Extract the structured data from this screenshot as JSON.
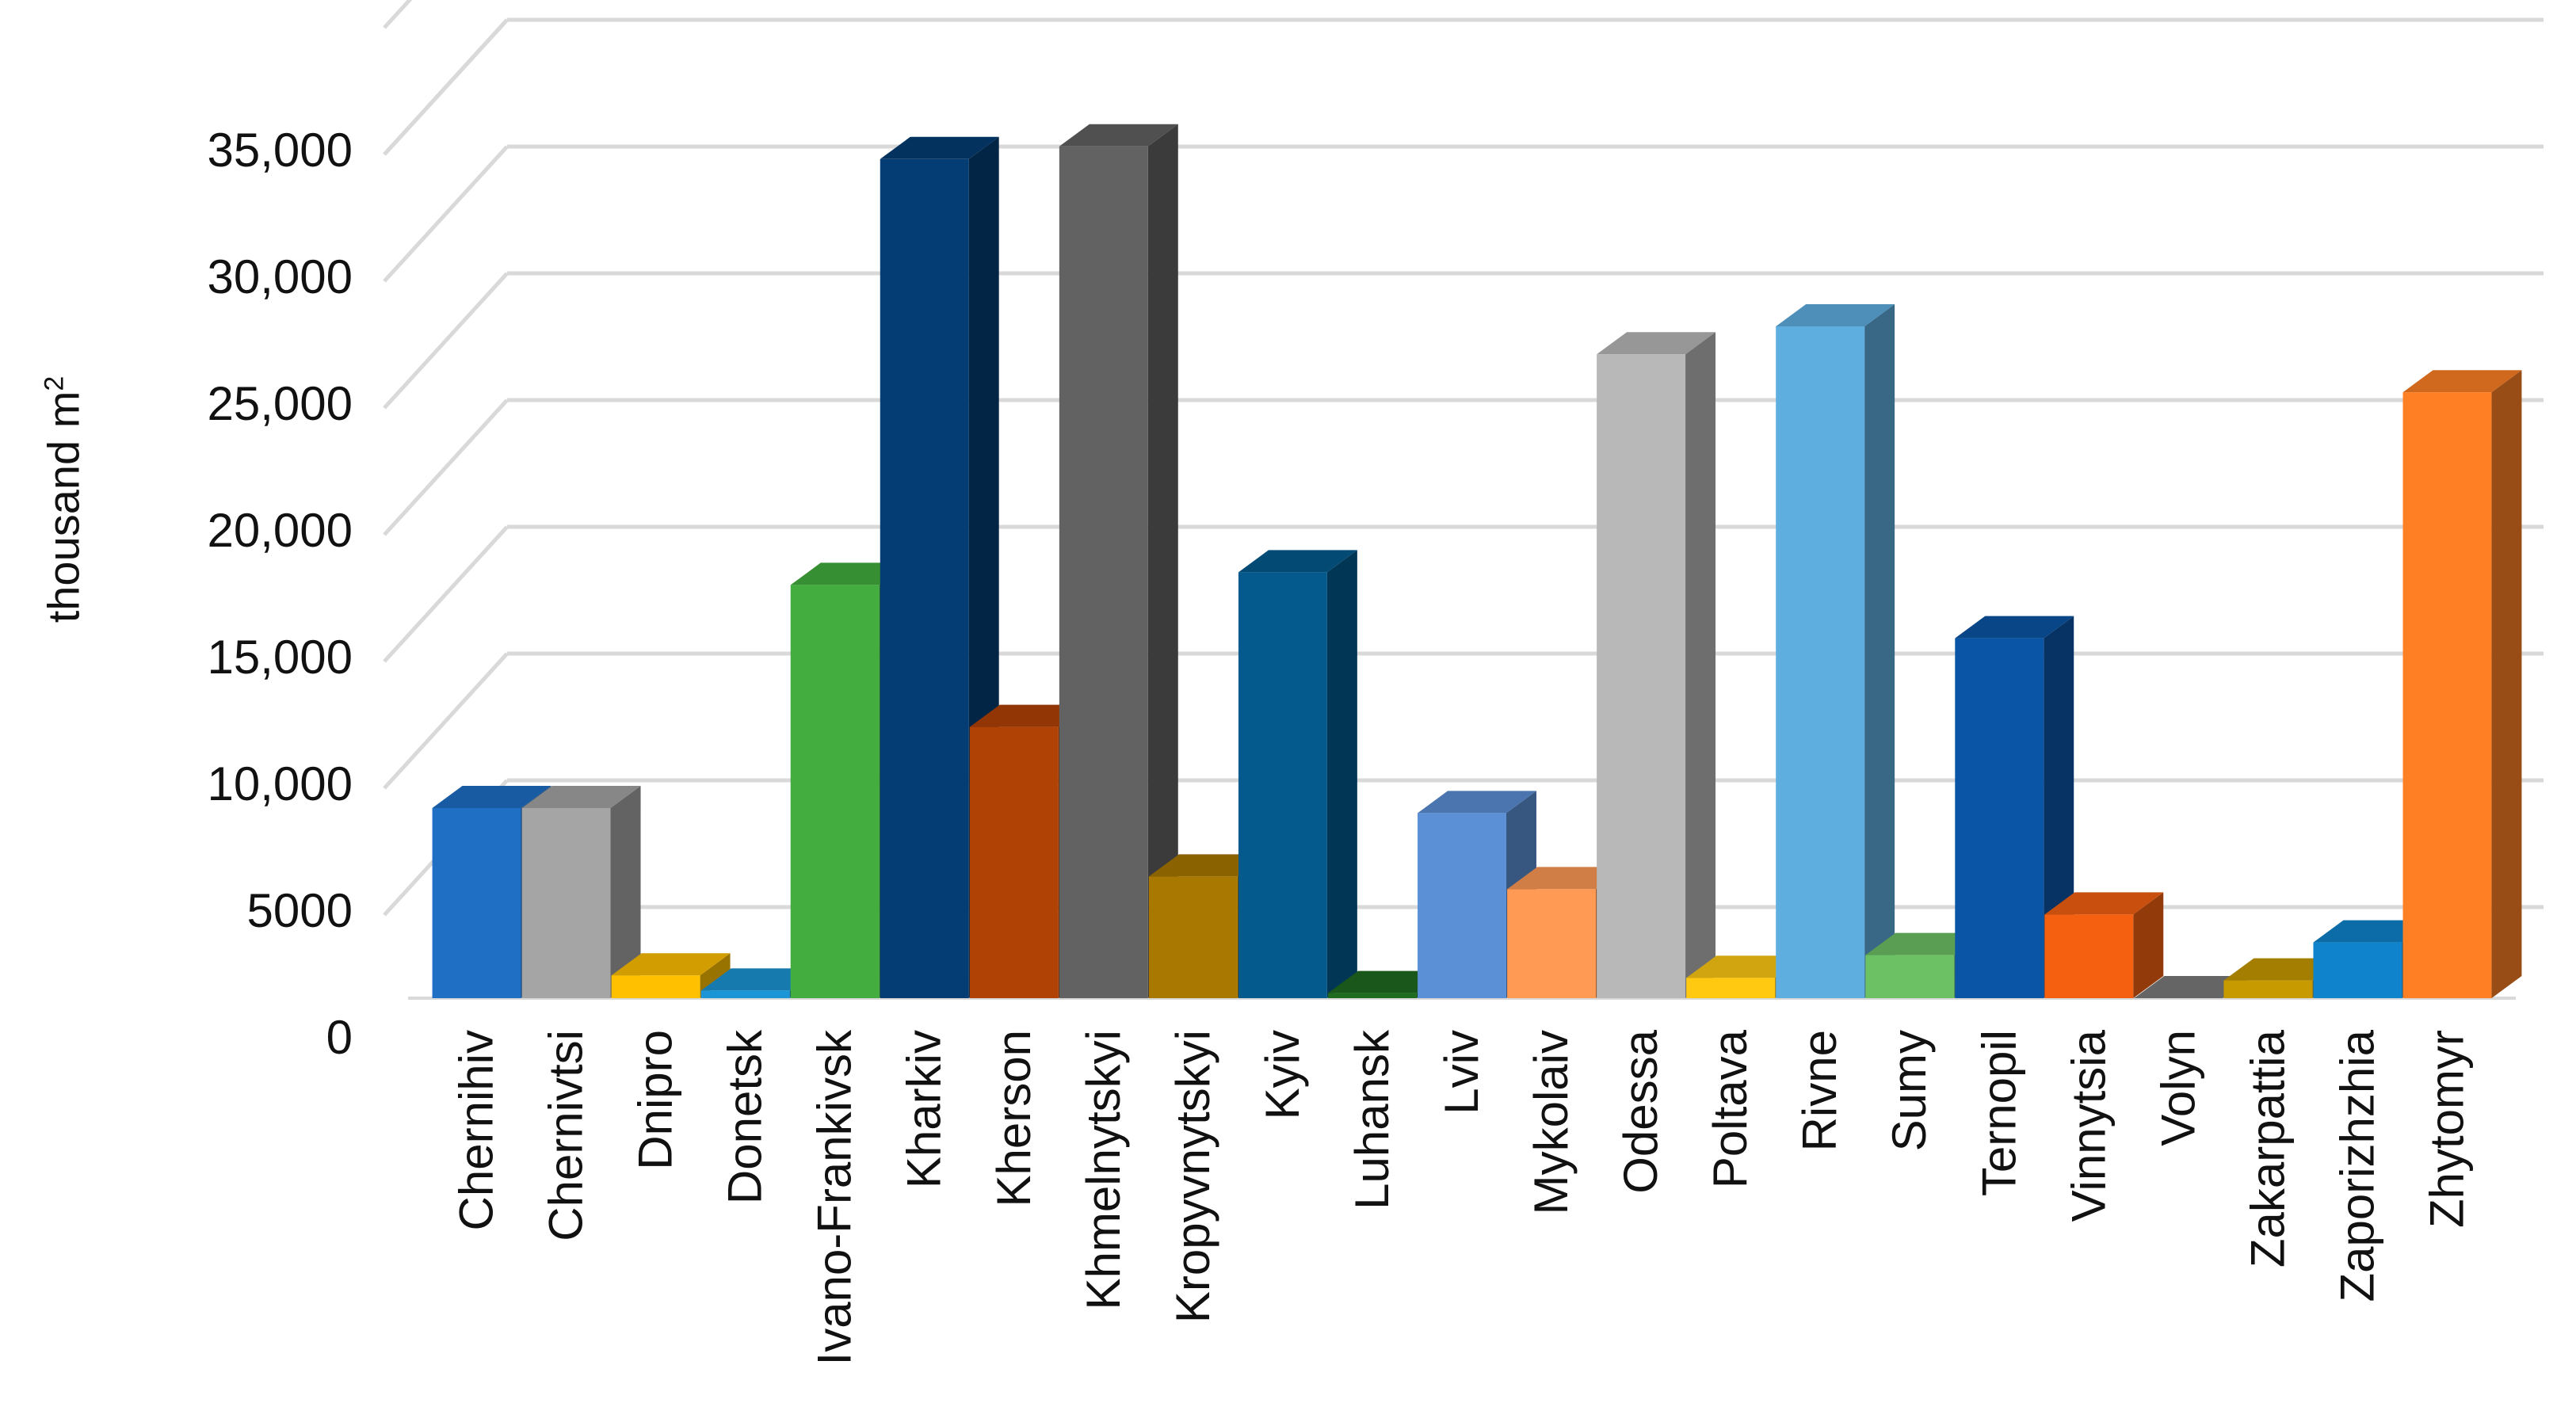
{
  "chart_data": {
    "type": "bar",
    "style": "3d-column",
    "ylabel": "thousand m",
    "ylabel_superscript": "2",
    "ylim": [
      0,
      35000
    ],
    "yticks": [
      0,
      5000,
      10000,
      15000,
      20000,
      25000,
      30000,
      35000
    ],
    "ytick_labels": [
      "0",
      "5000",
      "10,000",
      "15,000",
      "20,000",
      "25,000",
      "30,000",
      "35,000"
    ],
    "grid": true,
    "legend": "none",
    "categories": [
      "Chernihiv",
      "Chernivtsi",
      "Dnipro",
      "Donetsk",
      "Ivano-Frankivsk",
      "Kharkiv",
      "Kherson",
      "Khmelnytskyi",
      "Kropyvnytskyi",
      "Kyiv",
      "Luhansk",
      "Lviv",
      "Mykolaiv",
      "Odessa",
      "Poltava",
      "Rivne",
      "Sumy",
      "Ternopil",
      "Vinnytsia",
      "Volyn",
      "Zakarpattia",
      "Zaporizhzhia",
      "Zhytomyr"
    ],
    "values": [
      7500,
      7500,
      900,
      300,
      16300,
      33100,
      10700,
      33600,
      4800,
      16800,
      200,
      7300,
      4300,
      25400,
      800,
      26500,
      1700,
      14200,
      3300,
      0,
      700,
      2200,
      23900
    ],
    "colors": [
      "#1f6fc5",
      "#a5a5a5",
      "#ffc000",
      "#1c95d6",
      "#43ae3f",
      "#043d74",
      "#b14205",
      "#626262",
      "#a87800",
      "#045a8d",
      "#1f6b20",
      "#5b8fd6",
      "#ff9a55",
      "#b8b8b8",
      "#ffc912",
      "#5eaee0",
      "#6cc164",
      "#0a55a6",
      "#f46010",
      "#7b7b7b",
      "#c79a00",
      "#0f84cc",
      "#fe7f24"
    ]
  }
}
